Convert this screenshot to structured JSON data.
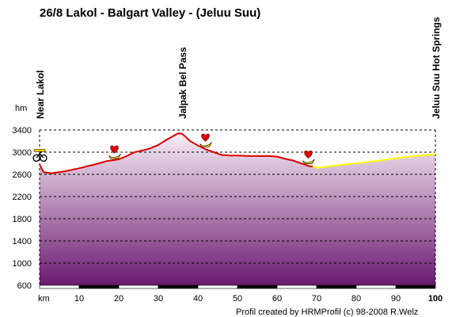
{
  "chart_data": {
    "type": "area",
    "title": "26/8 Lakol - Balgart Valley - (Jeluu Suu)",
    "ylabel": "hm",
    "xlabel": "km",
    "ylim": [
      600,
      3400
    ],
    "xlim": [
      0,
      100
    ],
    "yticks": [
      600,
      1000,
      1400,
      1800,
      2200,
      2600,
      3000,
      3400
    ],
    "xticks": [
      10,
      20,
      30,
      40,
      50,
      60,
      70,
      80,
      90,
      100
    ],
    "grid": true,
    "colors": {
      "cycled_line": "#dd0000",
      "planned_line": "#ffff00",
      "fill_top": "#f8eef6",
      "fill_bottom": "#6a1a70",
      "grid": "#000000"
    },
    "waypoints": [
      {
        "km": 0,
        "label": "Near Lakol"
      },
      {
        "km": 36,
        "label": "Jalpak Bel Pass"
      },
      {
        "km": 100,
        "label": "Jeluu Suu Hot Springs"
      }
    ],
    "markers": [
      {
        "km": 0,
        "icon": "bicycle-icon"
      },
      {
        "km": 18.5,
        "icon": "heart-icon"
      },
      {
        "km": 41.5,
        "icon": "heart-icon"
      },
      {
        "km": 67.5,
        "icon": "heart-icon"
      }
    ],
    "series": [
      {
        "x": [
          0,
          1,
          3,
          6,
          10,
          14,
          17,
          20,
          22,
          24,
          26,
          28,
          30,
          32,
          34,
          35,
          36,
          37,
          38,
          40,
          42,
          44,
          46,
          48,
          50,
          53,
          56,
          58,
          60,
          62,
          64,
          66,
          68,
          69
        ],
        "values": [
          2780,
          2640,
          2620,
          2650,
          2710,
          2780,
          2840,
          2870,
          2930,
          3000,
          3030,
          3070,
          3130,
          3220,
          3300,
          3340,
          3330,
          3270,
          3200,
          3120,
          3050,
          3000,
          2950,
          2940,
          2940,
          2930,
          2930,
          2930,
          2920,
          2880,
          2850,
          2800,
          2750,
          2740
        ]
      },
      {
        "x": [
          69,
          70,
          72,
          75,
          80,
          85,
          90,
          95,
          100
        ],
        "values": [
          2740,
          2720,
          2730,
          2760,
          2800,
          2840,
          2890,
          2930,
          2960
        ]
      }
    ],
    "credit": "Profil created by HRMProfil (c) 98-2008 R.Welz"
  }
}
